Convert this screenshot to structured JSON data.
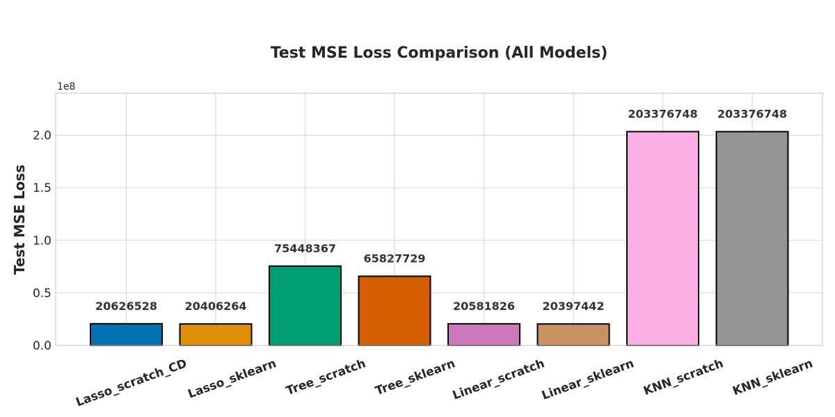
{
  "chart_data": {
    "type": "bar",
    "title": "Test MSE Loss Comparison (All Models)",
    "xlabel": "",
    "ylabel": "Test MSE Loss",
    "y_offset_label": "1e8",
    "y_scale": 100000000,
    "ylim": [
      0,
      240000000
    ],
    "yticks": [
      0,
      50000000,
      100000000,
      150000000,
      200000000
    ],
    "ytick_labels": [
      "0.0",
      "0.5",
      "1.0",
      "1.5",
      "2.0"
    ],
    "grid": true,
    "categories": [
      "Lasso_scratch_CD",
      "Lasso_sklearn",
      "Tree_scratch",
      "Tree_sklearn",
      "Linear_scratch",
      "Linear_sklearn",
      "KNN_scratch",
      "KNN_sklearn"
    ],
    "values": [
      20626528,
      20406264,
      75448367,
      65827729,
      20581826,
      20397442,
      203376748,
      203376748
    ],
    "value_labels": [
      "20626528",
      "20406264",
      "75448367",
      "65827729",
      "20581826",
      "20397442",
      "203376748",
      "203376748"
    ],
    "colors": [
      "#0173b2",
      "#de8f05",
      "#029e73",
      "#d55e00",
      "#cc78bc",
      "#ca9161",
      "#fbafe4",
      "#949494"
    ]
  }
}
